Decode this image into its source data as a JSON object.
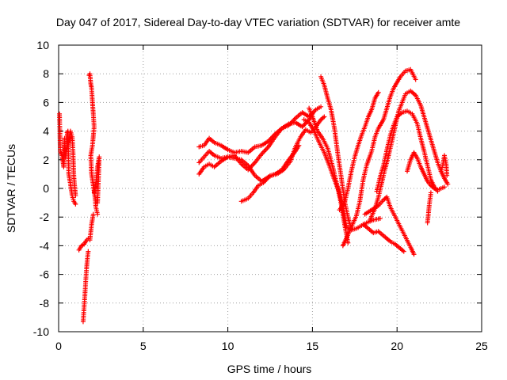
{
  "chart_data": {
    "type": "scatter",
    "title": "Day 047 of 2017, Sidereal Day-to-day VTEC variation (SDTVAR) for receiver amte",
    "xlabel": "GPS time / hours",
    "ylabel": "SDTVAR / TECUs",
    "xlim": [
      0,
      25
    ],
    "ylim": [
      -10,
      10
    ],
    "xticks": [
      "0",
      "5",
      "10",
      "15",
      "20",
      "25"
    ],
    "yticks": [
      "-10",
      "-8",
      "-6",
      "-4",
      "-2",
      "0",
      "2",
      "4",
      "6",
      "8",
      "10"
    ],
    "xtick_values": [
      0,
      5,
      10,
      15,
      20,
      25
    ],
    "ytick_values": [
      -10,
      -8,
      -6,
      -4,
      -2,
      0,
      2,
      4,
      6,
      8,
      10
    ],
    "grid": true,
    "marker": "+",
    "color": "#ff0000",
    "series": [
      {
        "values": [
          [
            0.05,
            5.2
          ],
          [
            0.1,
            2.6
          ],
          [
            0.2,
            2.3
          ],
          [
            0.3,
            1.5
          ],
          [
            0.35,
            3.5
          ],
          [
            0.4,
            2.2
          ],
          [
            0.5,
            2.8
          ],
          [
            0.55,
            4.0
          ],
          [
            0.6,
            1.0
          ],
          [
            0.7,
            0.3
          ],
          [
            0.8,
            -0.5
          ],
          [
            0.9,
            -0.9
          ],
          [
            1.0,
            -1.1
          ]
        ]
      },
      {
        "values": [
          [
            0.5,
            3.9
          ],
          [
            0.6,
            3.2
          ],
          [
            0.7,
            4.0
          ],
          [
            0.8,
            3.6
          ],
          [
            0.85,
            2.6
          ],
          [
            0.9,
            0.8
          ],
          [
            1.0,
            -0.5
          ]
        ]
      },
      {
        "values": [
          [
            1.2,
            -4.3
          ],
          [
            1.35,
            -4.0
          ],
          [
            1.5,
            -3.9
          ],
          [
            1.6,
            -3.7
          ],
          [
            1.75,
            -3.5
          ],
          [
            1.85,
            -3.6
          ],
          [
            1.95,
            -2.5
          ],
          [
            2.05,
            -1.8
          ]
        ]
      },
      {
        "values": [
          [
            1.45,
            -9.3
          ],
          [
            1.5,
            -8.4
          ],
          [
            1.55,
            -7.5
          ],
          [
            1.6,
            -6.5
          ],
          [
            1.65,
            -5.6
          ],
          [
            1.7,
            -4.9
          ],
          [
            1.75,
            -4.4
          ]
        ]
      },
      {
        "values": [
          [
            1.8,
            7.9
          ],
          [
            1.85,
            8.0
          ],
          [
            1.9,
            7.3
          ],
          [
            1.95,
            7.0
          ],
          [
            2.0,
            6.0
          ],
          [
            2.05,
            5.2
          ],
          [
            2.1,
            4.3
          ],
          [
            2.0,
            3.0
          ],
          [
            1.9,
            2.3
          ],
          [
            1.95,
            1.0
          ],
          [
            2.05,
            0.2
          ],
          [
            2.15,
            -0.6
          ],
          [
            2.2,
            -1.3
          ],
          [
            2.3,
            -1.8
          ]
        ]
      },
      {
        "values": [
          [
            2.1,
            -0.3
          ],
          [
            2.2,
            0.4
          ],
          [
            2.3,
            1.5
          ],
          [
            2.4,
            2.2
          ],
          [
            2.3,
            -1.0
          ]
        ]
      },
      {
        "values": [
          [
            8.3,
            2.9
          ],
          [
            8.6,
            3.0
          ],
          [
            8.9,
            3.5
          ],
          [
            9.2,
            3.2
          ],
          [
            9.6,
            3.0
          ],
          [
            10.0,
            2.7
          ],
          [
            10.4,
            2.5
          ],
          [
            10.8,
            2.6
          ],
          [
            11.2,
            2.5
          ],
          [
            11.6,
            2.9
          ],
          [
            12.0,
            3.0
          ],
          [
            12.4,
            3.3
          ],
          [
            12.8,
            3.8
          ],
          [
            13.2,
            4.2
          ],
          [
            13.6,
            4.5
          ],
          [
            14.0,
            4.6
          ],
          [
            14.4,
            4.3
          ],
          [
            14.8,
            4.8
          ],
          [
            15.0,
            5.2
          ]
        ]
      },
      {
        "values": [
          [
            8.3,
            1.8
          ],
          [
            8.6,
            2.2
          ],
          [
            8.9,
            2.6
          ],
          [
            9.2,
            2.3
          ],
          [
            9.6,
            2.1
          ],
          [
            10.0,
            2.2
          ],
          [
            10.4,
            2.3
          ],
          [
            10.8,
            1.7
          ],
          [
            11.2,
            1.3
          ],
          [
            11.6,
            1.8
          ],
          [
            12.0,
            2.4
          ],
          [
            12.4,
            2.9
          ],
          [
            12.8,
            3.6
          ],
          [
            13.2,
            4.2
          ],
          [
            13.6,
            4.4
          ],
          [
            14.0,
            4.9
          ],
          [
            14.4,
            5.3
          ],
          [
            14.8,
            5.0
          ],
          [
            15.2,
            5.5
          ],
          [
            15.5,
            5.7
          ]
        ]
      },
      {
        "values": [
          [
            8.3,
            1.0
          ],
          [
            8.6,
            1.5
          ],
          [
            8.9,
            1.7
          ],
          [
            9.2,
            1.5
          ],
          [
            9.6,
            1.9
          ],
          [
            10.0,
            2.2
          ],
          [
            10.4,
            2.1
          ],
          [
            10.8,
            2.0
          ],
          [
            11.2,
            1.6
          ],
          [
            11.6,
            0.9
          ],
          [
            12.0,
            0.5
          ],
          [
            12.4,
            0.8
          ],
          [
            12.8,
            1.0
          ],
          [
            13.2,
            1.3
          ],
          [
            13.6,
            2.0
          ],
          [
            14.0,
            2.6
          ],
          [
            14.2,
            3.0
          ]
        ]
      },
      {
        "values": [
          [
            10.8,
            -0.9
          ],
          [
            11.2,
            -0.7
          ],
          [
            11.5,
            -0.3
          ],
          [
            11.8,
            0.2
          ],
          [
            12.1,
            0.4
          ],
          [
            12.5,
            0.9
          ],
          [
            12.9,
            1.0
          ],
          [
            13.3,
            1.3
          ],
          [
            13.7,
            1.9
          ],
          [
            14.0,
            2.9
          ],
          [
            14.3,
            3.6
          ],
          [
            14.6,
            4.1
          ],
          [
            14.9,
            3.9
          ],
          [
            15.2,
            4.3
          ],
          [
            15.5,
            4.8
          ],
          [
            15.7,
            5.0
          ]
        ]
      },
      {
        "values": [
          [
            15.5,
            7.8
          ],
          [
            15.7,
            7.2
          ],
          [
            15.9,
            6.3
          ],
          [
            16.1,
            5.5
          ],
          [
            16.3,
            4.2
          ],
          [
            16.5,
            2.4
          ],
          [
            16.7,
            0.8
          ],
          [
            16.9,
            -0.9
          ],
          [
            17.1,
            -2.0
          ],
          [
            17.3,
            -2.9
          ]
        ]
      },
      {
        "values": [
          [
            14.8,
            5.6
          ],
          [
            15.0,
            5.0
          ],
          [
            15.3,
            4.0
          ],
          [
            15.6,
            3.5
          ],
          [
            15.9,
            2.8
          ],
          [
            16.2,
            1.5
          ],
          [
            16.5,
            0.0
          ],
          [
            16.7,
            -1.1
          ],
          [
            16.9,
            -2.5
          ],
          [
            17.1,
            -3.8
          ]
        ]
      },
      {
        "values": [
          [
            14.5,
            4.8
          ],
          [
            14.8,
            4.6
          ],
          [
            15.1,
            4.0
          ],
          [
            15.4,
            3.2
          ],
          [
            15.7,
            2.5
          ],
          [
            16.0,
            1.6
          ],
          [
            16.3,
            0.6
          ],
          [
            16.6,
            -0.3
          ],
          [
            16.8,
            -1.4
          ],
          [
            17.0,
            -2.7
          ],
          [
            17.3,
            -2.9
          ],
          [
            17.6,
            -2.8
          ],
          [
            17.9,
            -2.6
          ],
          [
            18.2,
            -2.4
          ],
          [
            18.6,
            -2.2
          ],
          [
            19.0,
            -2.1
          ]
        ]
      },
      {
        "values": [
          [
            16.8,
            -4.0
          ],
          [
            17.0,
            -3.5
          ],
          [
            17.3,
            -2.7
          ],
          [
            17.6,
            -1.9
          ],
          [
            17.8,
            -0.9
          ],
          [
            18.0,
            0.6
          ],
          [
            18.2,
            1.6
          ],
          [
            18.5,
            2.6
          ],
          [
            18.7,
            3.6
          ],
          [
            18.9,
            4.2
          ],
          [
            19.2,
            4.8
          ],
          [
            19.4,
            5.6
          ],
          [
            19.6,
            6.4
          ],
          [
            19.8,
            7.0
          ],
          [
            20.0,
            7.4
          ],
          [
            20.2,
            7.8
          ],
          [
            20.5,
            8.2
          ],
          [
            20.8,
            8.3
          ],
          [
            21.1,
            7.6
          ]
        ]
      },
      {
        "values": [
          [
            16.6,
            -1.5
          ],
          [
            16.9,
            -1.0
          ],
          [
            17.1,
            0.0
          ],
          [
            17.3,
            1.2
          ],
          [
            17.5,
            2.2
          ],
          [
            17.7,
            3.0
          ],
          [
            17.9,
            3.7
          ],
          [
            18.1,
            4.3
          ],
          [
            18.3,
            5.0
          ],
          [
            18.5,
            5.5
          ],
          [
            18.7,
            6.3
          ],
          [
            18.9,
            6.7
          ]
        ]
      },
      {
        "values": [
          [
            18.0,
            -2.5
          ],
          [
            18.3,
            -2.8
          ],
          [
            18.6,
            -3.1
          ],
          [
            18.9,
            -3.0
          ],
          [
            19.3,
            -3.4
          ],
          [
            19.6,
            -3.7
          ],
          [
            19.9,
            -3.9
          ],
          [
            20.2,
            -4.2
          ],
          [
            20.4,
            -4.4
          ]
        ]
      },
      {
        "values": [
          [
            18.1,
            -1.8
          ],
          [
            18.5,
            -1.5
          ],
          [
            18.9,
            -1.2
          ],
          [
            19.2,
            -0.8
          ],
          [
            19.4,
            -0.6
          ],
          [
            19.6,
            -1.3
          ],
          [
            19.9,
            -2.0
          ],
          [
            20.2,
            -2.7
          ],
          [
            20.5,
            -3.4
          ],
          [
            20.8,
            -4.1
          ],
          [
            21.0,
            -4.6
          ]
        ]
      },
      {
        "values": [
          [
            18.4,
            -2.2
          ],
          [
            18.7,
            -1.4
          ],
          [
            18.9,
            -0.6
          ],
          [
            19.1,
            0.4
          ],
          [
            19.3,
            1.4
          ],
          [
            19.5,
            2.3
          ],
          [
            19.7,
            3.3
          ],
          [
            19.9,
            4.4
          ],
          [
            20.1,
            5.4
          ],
          [
            20.3,
            6.0
          ],
          [
            20.5,
            6.6
          ],
          [
            20.8,
            6.8
          ],
          [
            21.1,
            6.5
          ],
          [
            21.4,
            5.8
          ],
          [
            21.6,
            5.0
          ],
          [
            21.8,
            4.2
          ],
          [
            22.0,
            3.4
          ],
          [
            22.2,
            2.6
          ],
          [
            22.4,
            1.8
          ],
          [
            22.6,
            1.2
          ],
          [
            22.8,
            0.7
          ],
          [
            23.0,
            0.3
          ]
        ]
      },
      {
        "values": [
          [
            18.8,
            -0.2
          ],
          [
            19.0,
            0.8
          ],
          [
            19.2,
            1.6
          ],
          [
            19.4,
            2.7
          ],
          [
            19.6,
            3.7
          ],
          [
            19.8,
            4.4
          ],
          [
            20.0,
            5.0
          ],
          [
            20.3,
            5.3
          ],
          [
            20.6,
            5.4
          ],
          [
            20.9,
            5.2
          ],
          [
            21.2,
            4.5
          ],
          [
            21.4,
            3.5
          ],
          [
            21.6,
            2.6
          ],
          [
            21.8,
            1.6
          ],
          [
            22.0,
            0.6
          ],
          [
            22.2,
            0.1
          ],
          [
            22.4,
            -0.2
          ]
        ]
      },
      {
        "values": [
          [
            20.6,
            1.2
          ],
          [
            20.8,
            2.0
          ],
          [
            21.0,
            2.5
          ],
          [
            21.2,
            2.1
          ],
          [
            21.4,
            1.5
          ],
          [
            21.6,
            1.0
          ],
          [
            21.8,
            0.5
          ],
          [
            22.0,
            0.2
          ],
          [
            22.2,
            0.0
          ],
          [
            22.4,
            -0.1
          ],
          [
            22.6,
            0.0
          ],
          [
            22.8,
            0.1
          ]
        ]
      },
      {
        "values": [
          [
            21.8,
            -2.4
          ],
          [
            21.9,
            -1.2
          ],
          [
            22.0,
            -0.3
          ]
        ]
      },
      {
        "values": [
          [
            22.6,
            1.2
          ],
          [
            22.7,
            1.6
          ],
          [
            22.8,
            2.3
          ],
          [
            22.9,
            1.7
          ],
          [
            22.95,
            0.9
          ]
        ]
      }
    ]
  }
}
